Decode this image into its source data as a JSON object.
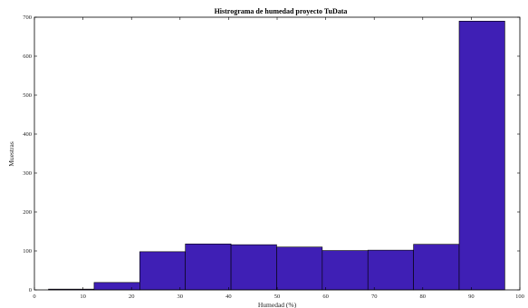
{
  "chart_data": {
    "type": "bar",
    "title": "Histrograma de humedad proyecto TuData",
    "xlabel": "Humedad (%)",
    "ylabel": "Muestras",
    "xlim": [
      0,
      100
    ],
    "ylim": [
      0,
      700
    ],
    "xticks": [
      0,
      10,
      20,
      30,
      40,
      50,
      60,
      70,
      80,
      90,
      100
    ],
    "yticks": [
      0,
      100,
      200,
      300,
      400,
      500,
      600,
      700
    ],
    "bar_color": "#3F1FB5",
    "bins": [
      {
        "start": 2.9,
        "end": 12.3,
        "value": 2
      },
      {
        "start": 12.3,
        "end": 21.7,
        "value": 19
      },
      {
        "start": 21.7,
        "end": 31.1,
        "value": 98
      },
      {
        "start": 31.1,
        "end": 40.5,
        "value": 118
      },
      {
        "start": 40.5,
        "end": 49.9,
        "value": 116
      },
      {
        "start": 49.9,
        "end": 59.3,
        "value": 110
      },
      {
        "start": 59.3,
        "end": 68.7,
        "value": 101
      },
      {
        "start": 68.7,
        "end": 78.1,
        "value": 102
      },
      {
        "start": 78.1,
        "end": 87.5,
        "value": 117
      },
      {
        "start": 87.5,
        "end": 96.9,
        "value": 690
      }
    ],
    "grid": false
  }
}
